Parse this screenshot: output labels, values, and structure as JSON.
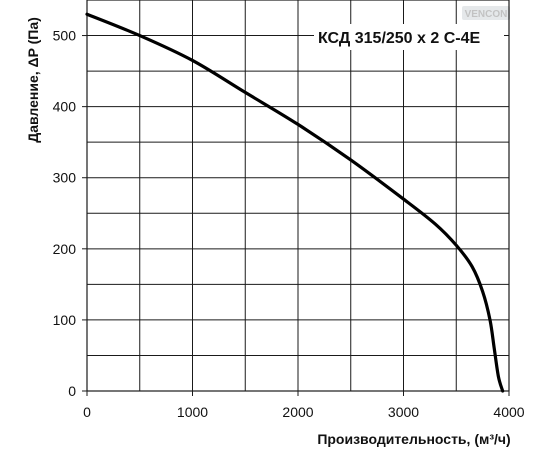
{
  "chart_data": {
    "type": "line",
    "title": "КСД 315/250 x 2 С-4Е",
    "xlabel": "Производительность, (м³/ч)",
    "ylabel": "Давление, ΔP (Па)",
    "xlim": [
      0,
      4000
    ],
    "ylim": [
      0,
      550
    ],
    "x_ticks": [
      "0",
      "1000",
      "2000",
      "3000",
      "4000"
    ],
    "y_ticks": [
      "0",
      "100",
      "200",
      "300",
      "400",
      "500"
    ],
    "grid": true,
    "series": [
      {
        "color": "#000000",
        "x": [
          0,
          500,
          1000,
          1500,
          2000,
          2500,
          3000,
          3300,
          3500,
          3650,
          3750,
          3820,
          3860,
          3900,
          3940
        ],
        "y": [
          530,
          500,
          465,
          420,
          375,
          325,
          270,
          235,
          205,
          175,
          140,
          100,
          60,
          20,
          0
        ]
      }
    ]
  },
  "logo": "VENCON"
}
